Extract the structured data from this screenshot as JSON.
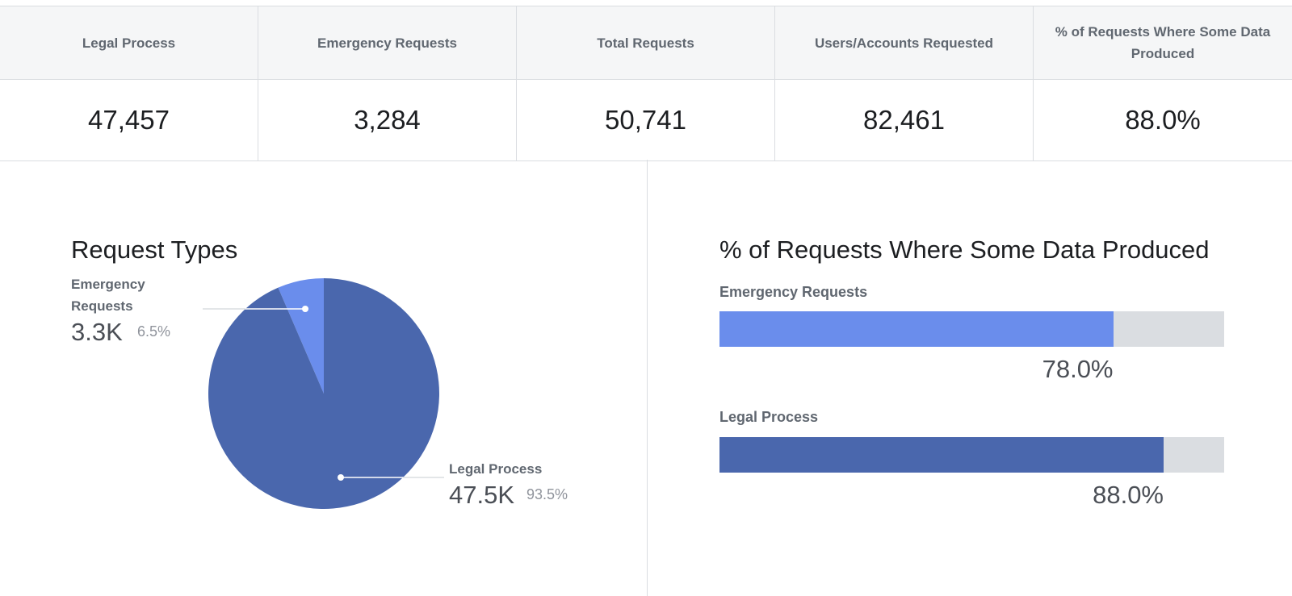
{
  "summary": {
    "headers": [
      "Legal Process",
      "Emergency Requests",
      "Total Requests",
      "Users/Accounts Requested",
      "% of Requests Where Some Data Produced"
    ],
    "values": [
      "47,457",
      "3,284",
      "50,741",
      "82,461",
      "88.0%"
    ]
  },
  "colors": {
    "legal": "#4a67ad",
    "emergency": "#6a8dec",
    "track": "#dadde1",
    "connector": "#ffffff"
  },
  "chart_data": [
    {
      "type": "pie",
      "title": "Request Types",
      "slices": [
        {
          "label": "Emergency Requests",
          "value": 3284,
          "display": "3.3K",
          "percent": "6.5%",
          "color": "#6a8dec"
        },
        {
          "label": "Legal Process",
          "value": 47457,
          "display": "47.5K",
          "percent": "93.5%",
          "color": "#4a67ad"
        }
      ]
    },
    {
      "type": "bar",
      "orientation": "horizontal",
      "title": "% of Requests Where Some Data Produced",
      "categories": [
        "Emergency Requests",
        "Legal Process"
      ],
      "values": [
        78.0,
        88.0
      ],
      "value_labels": [
        "78.0%",
        "88.0%"
      ],
      "xlim": [
        0,
        100
      ],
      "colors": [
        "#6a8dec",
        "#4a67ad"
      ]
    }
  ]
}
